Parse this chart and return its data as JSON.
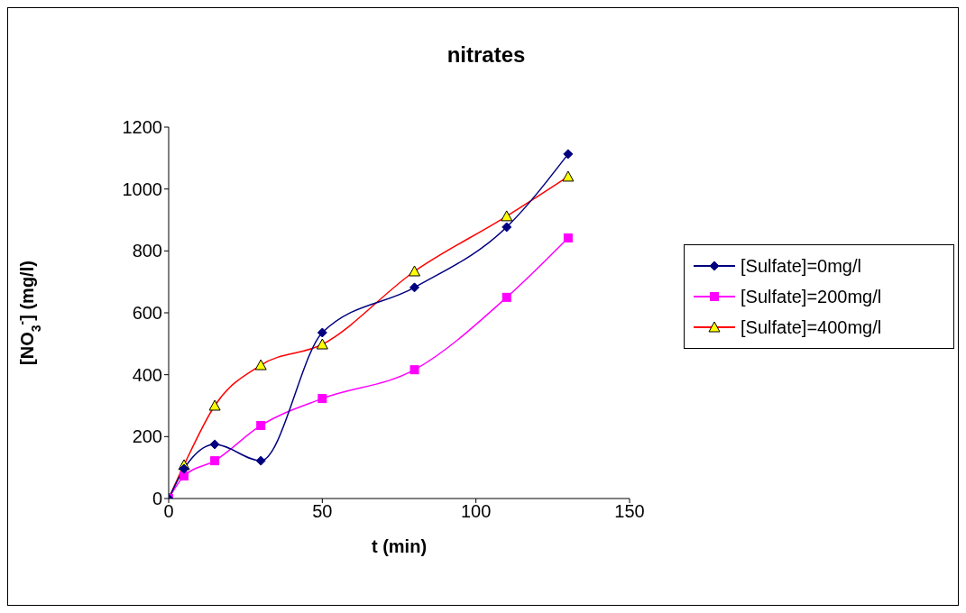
{
  "chart_data": {
    "type": "line",
    "title": "nitrates",
    "xlabel": "t (min)",
    "ylabel": "[NO$_{3}$$^{-}$] (mg/l)",
    "x": [
      0,
      5,
      15,
      30,
      50,
      80,
      110,
      130
    ],
    "series": [
      {
        "name": "[Sulfate]=0mg/l",
        "color": "#000080",
        "marker": "diamond",
        "values": [
          0,
          96,
          175,
          122,
          536,
          682,
          877,
          1113
        ]
      },
      {
        "name": "[Sulfate]=200mg/l",
        "color": "#ff00ff",
        "marker": "square",
        "values": [
          0,
          73,
          122,
          236,
          323,
          416,
          650,
          842
        ]
      },
      {
        "name": "[Sulfate]=400mg/l",
        "color": "#ff0000",
        "marker": "triangle",
        "values": [
          0,
          108,
          300,
          431,
          498,
          734,
          912,
          1040
        ]
      }
    ],
    "xlim": [
      0,
      150
    ],
    "xticks": [
      0,
      50,
      100,
      150
    ],
    "ylim": [
      0,
      1200
    ],
    "yticks": [
      0,
      200,
      400,
      600,
      800,
      1000,
      1200
    ],
    "grid": false,
    "legend": "right",
    "line_style": "solid"
  }
}
